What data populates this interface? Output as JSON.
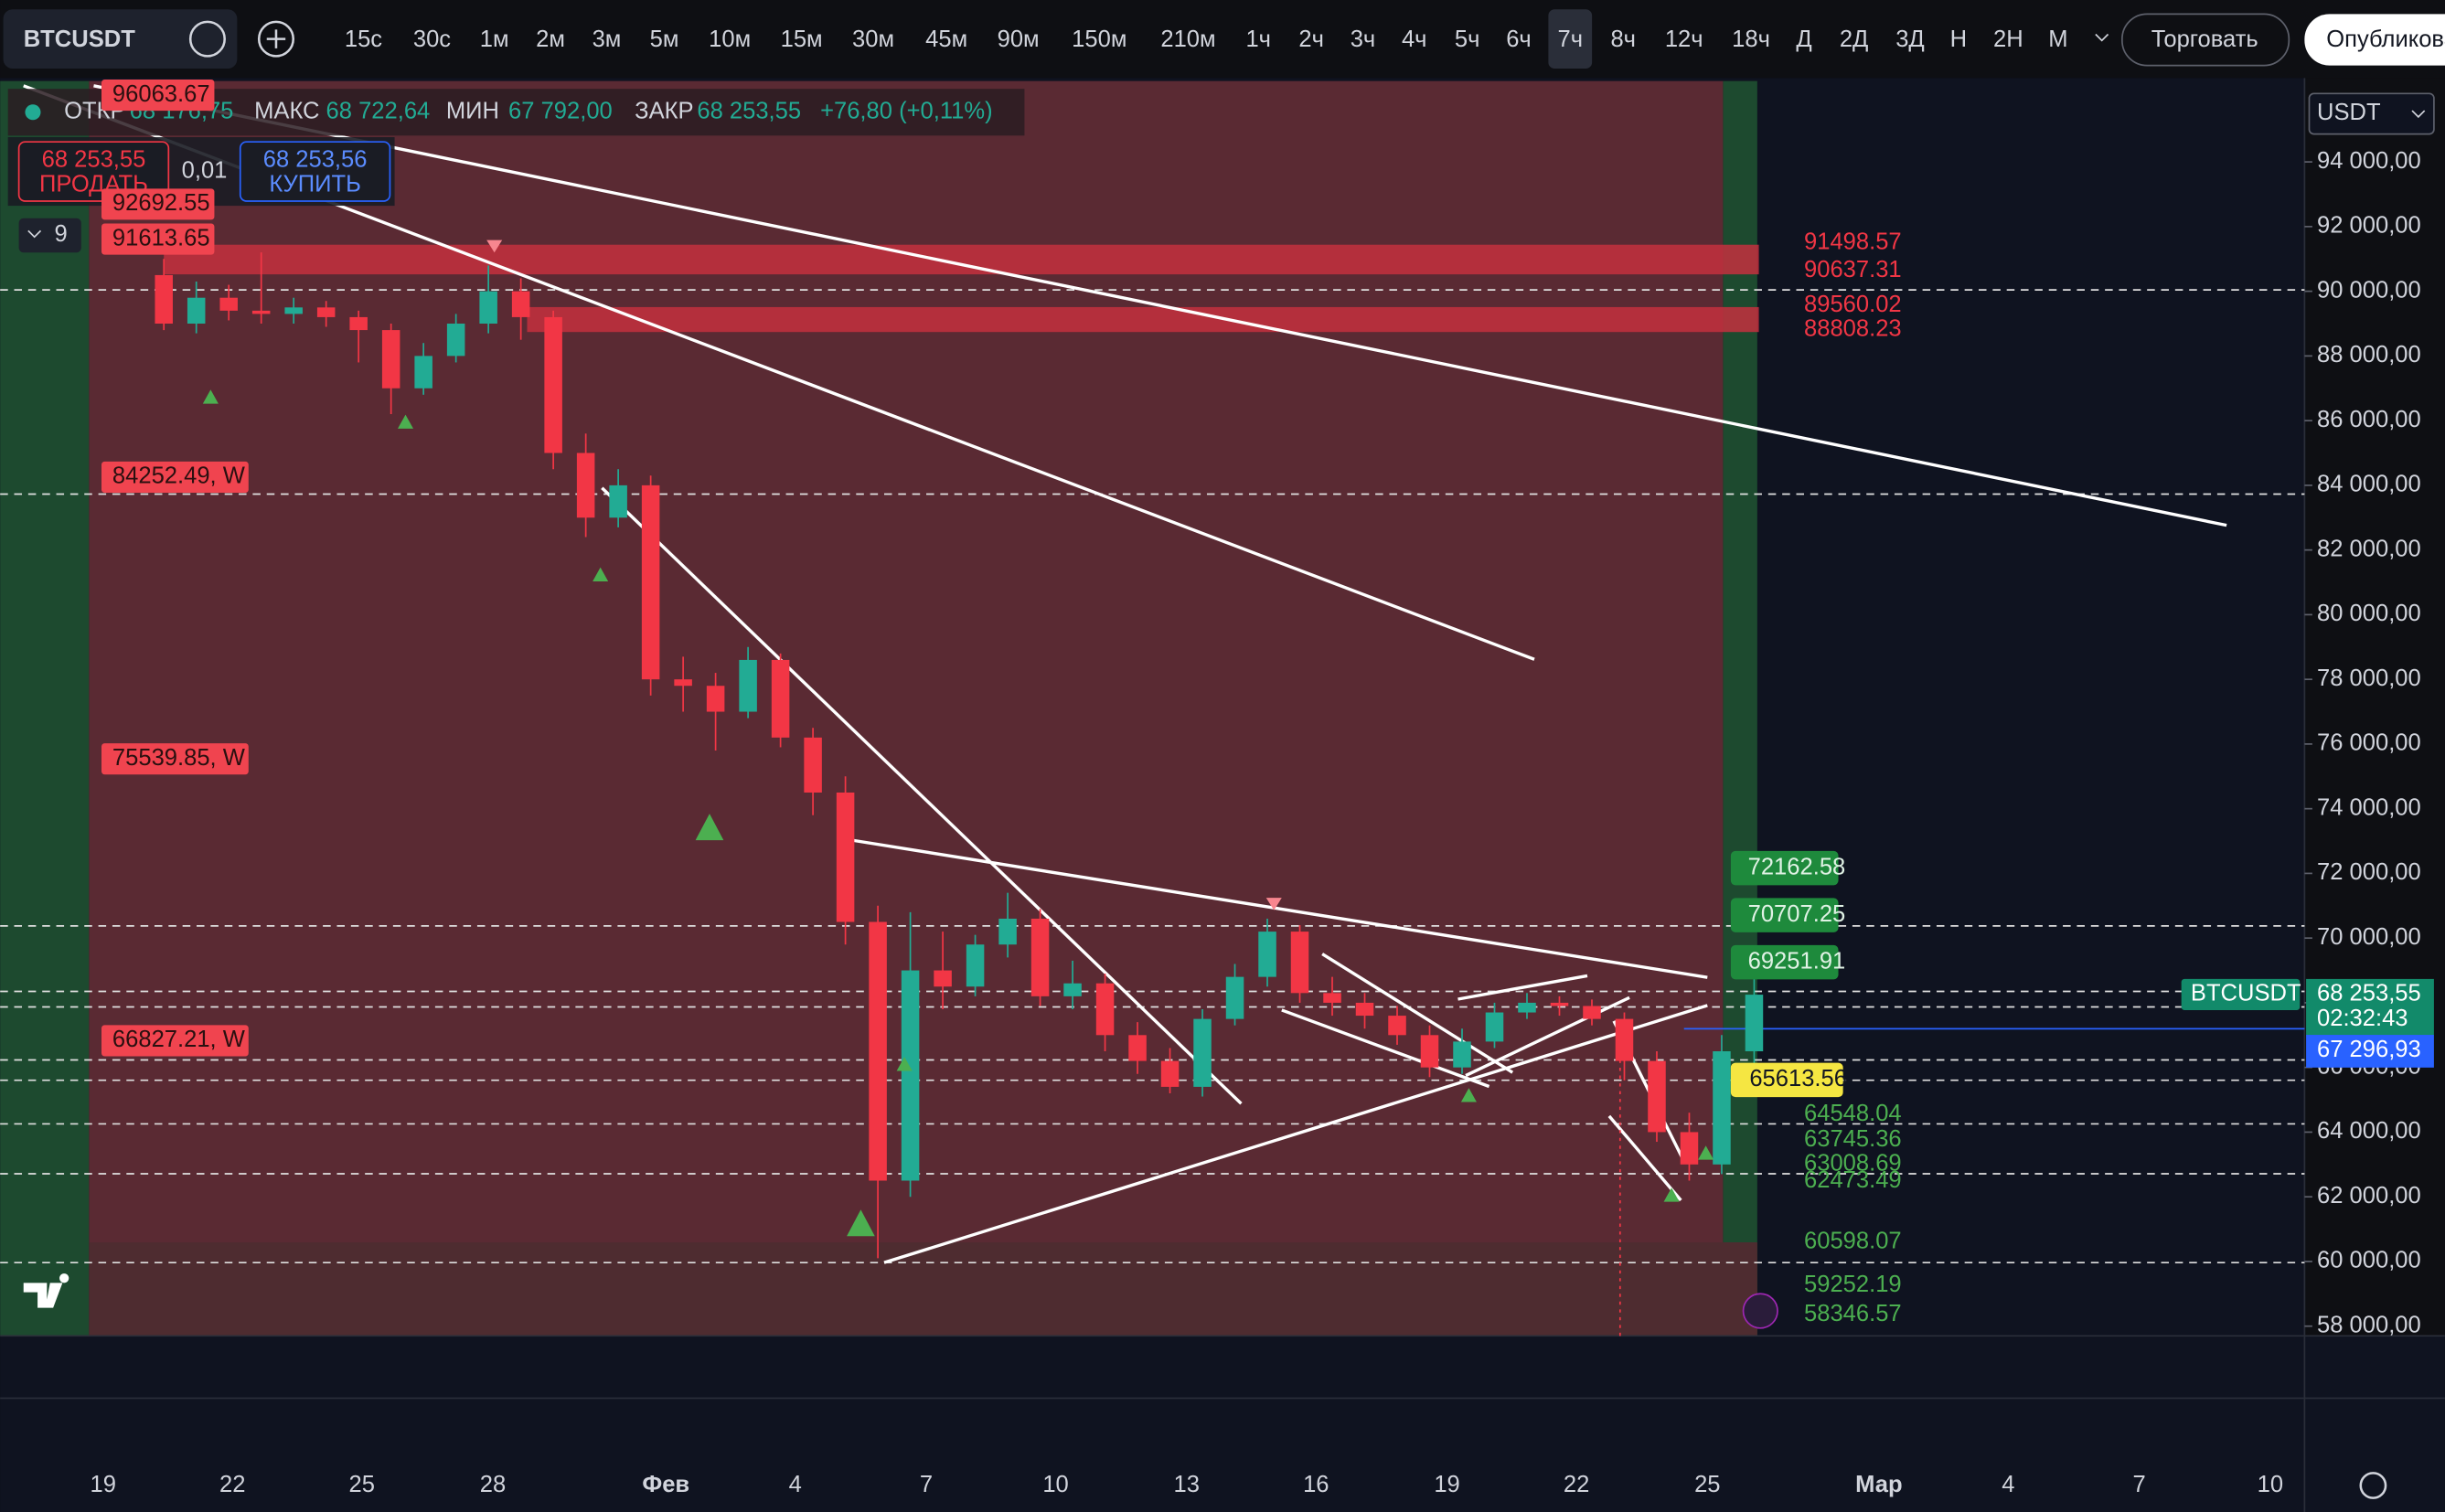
{
  "toolbar": {
    "symbol": "BTCUSDT",
    "intervals": [
      "15с",
      "30с",
      "1м",
      "2м",
      "3м",
      "5м",
      "10м",
      "15м",
      "30м",
      "45м",
      "90м",
      "150м",
      "210м",
      "1ч",
      "2ч",
      "3ч",
      "4ч",
      "5ч",
      "6ч",
      "7ч",
      "8ч",
      "12ч",
      "18ч",
      "Д",
      "2Д",
      "3Д",
      "Н",
      "2Н",
      "М"
    ],
    "active_interval": "7ч",
    "trade_button": "Торговать",
    "publish_button": "Опубликовать"
  },
  "legend": {
    "open_label": "ОТКР",
    "open": "68 176,75",
    "high_label": "МАКС",
    "high": "68 722,64",
    "low_label": "МИН",
    "low": "67 792,00",
    "close_label": "ЗАКР",
    "close": "68 253,55",
    "change": "+76,80 (+0,11%)"
  },
  "trade": {
    "sell_price": "68 253,55",
    "sell_label": "ПРОДАТЬ",
    "spread": "0,01",
    "buy_price": "68 253,56",
    "buy_label": "КУПИТЬ",
    "indicators": "9"
  },
  "currency": "USDT",
  "chart_data": {
    "type": "candlestick",
    "open": [
      90500,
      89000,
      89800,
      89400,
      89300,
      89500,
      89200,
      88800,
      87000,
      88000,
      89000,
      90000,
      89200,
      85000,
      83000,
      84000,
      78000,
      77800,
      77000,
      78600,
      76200,
      74500,
      70500,
      62500,
      69000,
      68500,
      69800,
      70600,
      68200,
      68600,
      67000,
      66200,
      65400,
      67500,
      68800,
      70200,
      68300,
      68000,
      67600,
      67000,
      66000,
      66800,
      67700,
      68000,
      67900,
      67500,
      66200,
      64000,
      63000,
      66500
    ],
    "high": [
      91000,
      90300,
      90200,
      91200,
      89800,
      89700,
      89400,
      89000,
      88400,
      89300,
      90800,
      90400,
      89400,
      85600,
      84500,
      84300,
      78700,
      78200,
      79000,
      78800,
      76500,
      75000,
      71000,
      70800,
      70200,
      70100,
      71400,
      70900,
      69300,
      68900,
      67400,
      66600,
      67800,
      69200,
      70600,
      70400,
      68800,
      68300,
      67900,
      67300,
      67200,
      68000,
      68300,
      68200,
      68100,
      67700,
      66500,
      64600,
      67000,
      69500
    ],
    "low": [
      88800,
      88700,
      89100,
      89000,
      89000,
      88900,
      87800,
      86200,
      86800,
      87800,
      88700,
      88500,
      84500,
      82400,
      82700,
      77500,
      77000,
      75800,
      76800,
      75900,
      73800,
      69800,
      60100,
      62000,
      67800,
      68200,
      69400,
      67900,
      67800,
      66500,
      65800,
      65200,
      65100,
      67300,
      68500,
      68000,
      67600,
      67200,
      66700,
      65700,
      65800,
      66600,
      67500,
      67600,
      67300,
      65600,
      63700,
      62500,
      62700,
      66000
    ],
    "close": [
      89000,
      89800,
      89400,
      89300,
      89500,
      89200,
      88800,
      87000,
      88000,
      89000,
      90000,
      89200,
      85000,
      83000,
      84000,
      78000,
      77800,
      77000,
      78600,
      76200,
      74500,
      70500,
      62500,
      69000,
      68500,
      69800,
      70600,
      68200,
      68600,
      67000,
      66200,
      65400,
      67500,
      68800,
      70200,
      68300,
      68000,
      67600,
      67000,
      66000,
      66800,
      67700,
      68000,
      67900,
      67500,
      66200,
      64000,
      63000,
      66500,
      68250
    ],
    "up_color": "#22ab94",
    "down_color": "#f23645",
    "ylim": [
      57700,
      96500
    ],
    "yticks": [
      {
        "value": 94000,
        "label": "94 000,00"
      },
      {
        "value": 92000,
        "label": "92 000,00"
      },
      {
        "value": 90000,
        "label": "90 000,00"
      },
      {
        "value": 88000,
        "label": "88 000,00"
      },
      {
        "value": 86000,
        "label": "86 000,00"
      },
      {
        "value": 84000,
        "label": "84 000,00"
      },
      {
        "value": 82000,
        "label": "82 000,00"
      },
      {
        "value": 80000,
        "label": "80 000,00"
      },
      {
        "value": 78000,
        "label": "78 000,00"
      },
      {
        "value": 76000,
        "label": "76 000,00"
      },
      {
        "value": 74000,
        "label": "74 000,00"
      },
      {
        "value": 72000,
        "label": "72 000,00"
      },
      {
        "value": 70000,
        "label": "70 000,00"
      },
      {
        "value": 68000,
        "label": "68 000,00"
      },
      {
        "value": 66000,
        "label": "66 000,00"
      },
      {
        "value": 64000,
        "label": "64 000,00"
      },
      {
        "value": 62000,
        "label": "62 000,00"
      },
      {
        "value": 60000,
        "label": "60 000,00"
      },
      {
        "value": 58000,
        "label": "58 000,00"
      }
    ],
    "date_labels": [
      "19",
      "22",
      "25",
      "28",
      "Фев",
      "4",
      "7",
      "10",
      "13",
      "16",
      "19",
      "22",
      "25",
      "Мар",
      "4",
      "7",
      "10"
    ],
    "left_levels": [
      {
        "value": 96063.67,
        "label": "96063.67"
      },
      {
        "value": 92692.55,
        "label": "92692.55"
      },
      {
        "value": 91613.65,
        "label": "91613.65"
      },
      {
        "value": 84252.49,
        "label": "84252.49, W"
      },
      {
        "value": 75539.85,
        "label": "75539.85, W"
      },
      {
        "value": 66827.21,
        "label": "66827.21, W"
      }
    ],
    "resistance_levels": [
      91498.57,
      90637.31,
      89560.02,
      88808.23
    ],
    "boxed_levels": [
      72162.58,
      70707.25,
      69251.91
    ],
    "pivot_level": 65613.56,
    "support_levels": [
      64548.04,
      63745.36,
      63008.69,
      62473.49,
      60598.07,
      59252.19,
      58346.57
    ],
    "last_price": {
      "value": 68253.55,
      "label": "68 253,55",
      "symbol": "BTCUSDT",
      "countdown": "02:32:43"
    },
    "cursor_price": {
      "value": 67296.93,
      "label": "67 296,93"
    }
  }
}
